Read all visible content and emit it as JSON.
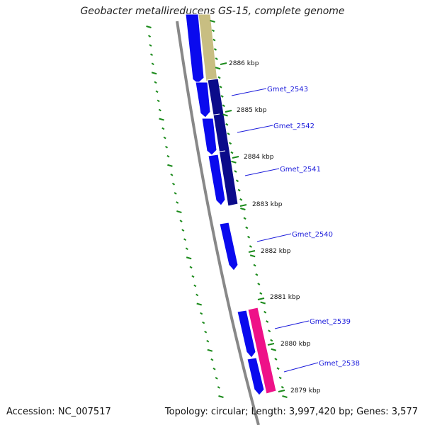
{
  "title": "Geobacter metallireducens GS-15, complete genome",
  "footer": {
    "accession": "Accession: NC_007517",
    "summary": "Topology: circular; Length: 3,997,420 bp; Genes: 3,577"
  },
  "colors": {
    "forward_gene": "#0a0aee",
    "forward_gene_dark": "#0b0b8a",
    "reverse_gene": "#1111ee",
    "pink_gene": "#ee1188",
    "tan_gene": "#c8be82",
    "backbone": "#888888",
    "tick": "#1a8a1a",
    "label_line": "#1a1adb"
  },
  "position_markers": [
    "2886 kbp",
    "2885 kbp",
    "2884 kbp",
    "2883 kbp",
    "2882 kbp",
    "2881 kbp",
    "2880 kbp",
    "2879 kbp"
  ],
  "gene_labels": [
    "Gmet_2543",
    "Gmet_2542",
    "Gmet_2541",
    "Gmet_2540",
    "Gmet_2539",
    "Gmet_2538"
  ]
}
